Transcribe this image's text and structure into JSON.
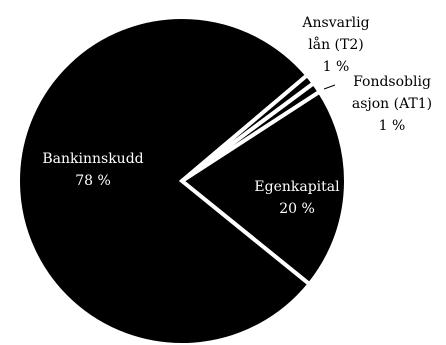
{
  "chart_data": {
    "type": "pie",
    "unit": "%",
    "slices": [
      {
        "label": "Egenkapital",
        "value": 20,
        "display": "20 %"
      },
      {
        "label": "Bankinnskudd",
        "value": 78,
        "display": "78 %"
      },
      {
        "label": "Ansvarlig lån (T2)",
        "label_lines": [
          "Ansvarlig",
          "lån (T2)"
        ],
        "value": 1,
        "display": "1 %"
      },
      {
        "label": "Fondsobligasjon (AT1)",
        "label_lines": [
          "Fondsoblig",
          "asjon (AT1)"
        ],
        "value": 1,
        "display": "1 %"
      }
    ],
    "colors": {
      "fill": "#000000",
      "separator": "#ffffff",
      "background": "#ffffff",
      "label_inside": "#ffffff",
      "label_outside": "#000000"
    },
    "legend": "none"
  }
}
